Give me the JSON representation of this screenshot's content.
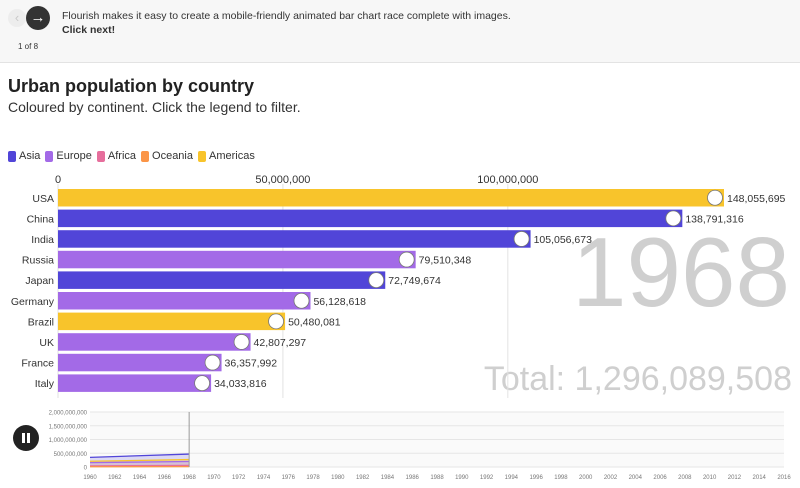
{
  "story": {
    "prev_icon": "‹",
    "next_icon": "→",
    "slide_count": "1 of 8",
    "text": "Flourish makes it easy to create a mobile-friendly animated bar chart race complete with images.",
    "cta": "Click next!"
  },
  "colors": {
    "Asia": "#5145d8",
    "Europe": "#a36ae7",
    "Africa": "#e66e9c",
    "Oceania": "#fb9547",
    "Americas": "#f8c42b"
  },
  "chart_data": [
    {
      "type": "bar",
      "title": "Urban population by country",
      "subtitle": "Coloured by continent. Click the legend to filter.",
      "legend": [
        "Asia",
        "Europe",
        "Africa",
        "Oceania",
        "Americas"
      ],
      "legend_position": "top-left",
      "xlim": [
        0,
        148055695
      ],
      "xticks": [
        0,
        50000000,
        100000000
      ],
      "xtick_labels": [
        "0",
        "50,000,000",
        "100,000,000"
      ],
      "categories": [
        "USA",
        "China",
        "India",
        "Russia",
        "Japan",
        "Germany",
        "Brazil",
        "UK",
        "France",
        "Italy"
      ],
      "values": [
        148055695,
        138791316,
        105056673,
        79510348,
        72749674,
        56128618,
        50480081,
        42807297,
        36357992,
        34033816
      ],
      "value_labels": [
        "148,055,695",
        "138,791,316",
        "105,056,673",
        "79,510,348",
        "72,749,674",
        "56,128,618",
        "50,480,081",
        "42,807,297",
        "36,357,992",
        "34,033,816"
      ],
      "continents": [
        "Americas",
        "Asia",
        "Asia",
        "Europe",
        "Asia",
        "Europe",
        "Americas",
        "Europe",
        "Europe",
        "Europe"
      ],
      "year_label": "1968",
      "total_label": "Total: 1,296,089,508"
    },
    {
      "type": "area",
      "title": "",
      "x_range": [
        1960,
        2016
      ],
      "ylim": [
        0,
        2000000000
      ],
      "yticks": [
        "0",
        "500,000,000",
        "1,000,000,000",
        "1,500,000,000",
        "2,000,000,000"
      ],
      "xticks": [
        "1960",
        "1962",
        "1964",
        "1966",
        "1968",
        "1970",
        "1972",
        "1974",
        "1976",
        "1978",
        "1980",
        "1982",
        "1984",
        "1986",
        "1988",
        "1990",
        "1992",
        "1994",
        "1996",
        "1998",
        "2000",
        "2002",
        "2004",
        "2006",
        "2008",
        "2010",
        "2012",
        "2014",
        "2016"
      ],
      "current_year": 1968,
      "series": [
        {
          "name": "Asia",
          "x": [
            1960,
            1968
          ],
          "values": [
            350000000,
            470000000
          ]
        },
        {
          "name": "Americas",
          "x": [
            1960,
            1968
          ],
          "values": [
            210000000,
            270000000
          ]
        },
        {
          "name": "Europe",
          "x": [
            1960,
            1968
          ],
          "values": [
            160000000,
            200000000
          ]
        },
        {
          "name": "Africa",
          "x": [
            1960,
            1968
          ],
          "values": [
            40000000,
            60000000
          ]
        },
        {
          "name": "Oceania",
          "x": [
            1960,
            1968
          ],
          "values": [
            10000000,
            14000000
          ]
        }
      ]
    }
  ]
}
